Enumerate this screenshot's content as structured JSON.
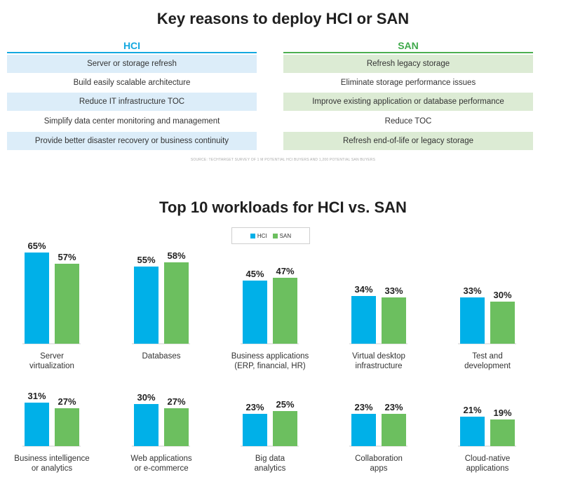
{
  "title": "Key reasons to deploy HCI or SAN",
  "hci": {
    "header": "HCI",
    "color": "#14a8e0",
    "reasons": [
      "Server or storage refresh",
      "Build easily scalable architecture",
      "Reduce IT infrastructure TOC",
      "Simplify data center monitoring and management",
      "Provide better disaster recovery or business continuity"
    ]
  },
  "san": {
    "header": "SAN",
    "color": "#6cbf5f",
    "reasons": [
      "Refresh legacy storage",
      "Eliminate storage performance issues",
      "Improve existing application or database performance",
      "Reduce TOC",
      "Refresh end-of-life or legacy storage"
    ]
  },
  "source": "SOURCE: TECHTARGET SURVEY OF 1 M POTENTIAL HCI BUYERS AND 1,200 POTENTIAL SAN BUYERS",
  "chart_title": "Top 10 workloads for HCI vs. SAN",
  "legend": {
    "hci": "HCI",
    "san": "SAN"
  },
  "chart_data": {
    "type": "bar",
    "title": "Top 10 workloads for HCI vs. SAN",
    "unit": "%",
    "categories": [
      [
        "Server",
        "virtualization"
      ],
      [
        "Databases"
      ],
      [
        "Business applications",
        "(ERP, financial, HR)"
      ],
      [
        "Virtual desktop",
        "infrastructure"
      ],
      [
        "Test and",
        "development"
      ],
      [
        "Business intelligence",
        "or analytics"
      ],
      [
        "Web applications",
        "or e-commerce"
      ],
      [
        "Big data",
        "analytics"
      ],
      [
        "Collaboration",
        "apps"
      ],
      [
        "Cloud-native",
        "applications"
      ]
    ],
    "series": [
      {
        "name": "HCI",
        "color": "#00b0e8",
        "values": [
          65,
          55,
          45,
          34,
          33,
          31,
          30,
          23,
          23,
          21
        ]
      },
      {
        "name": "SAN",
        "color": "#6cbf5f",
        "values": [
          57,
          58,
          47,
          33,
          30,
          27,
          27,
          25,
          23,
          19
        ]
      }
    ]
  }
}
